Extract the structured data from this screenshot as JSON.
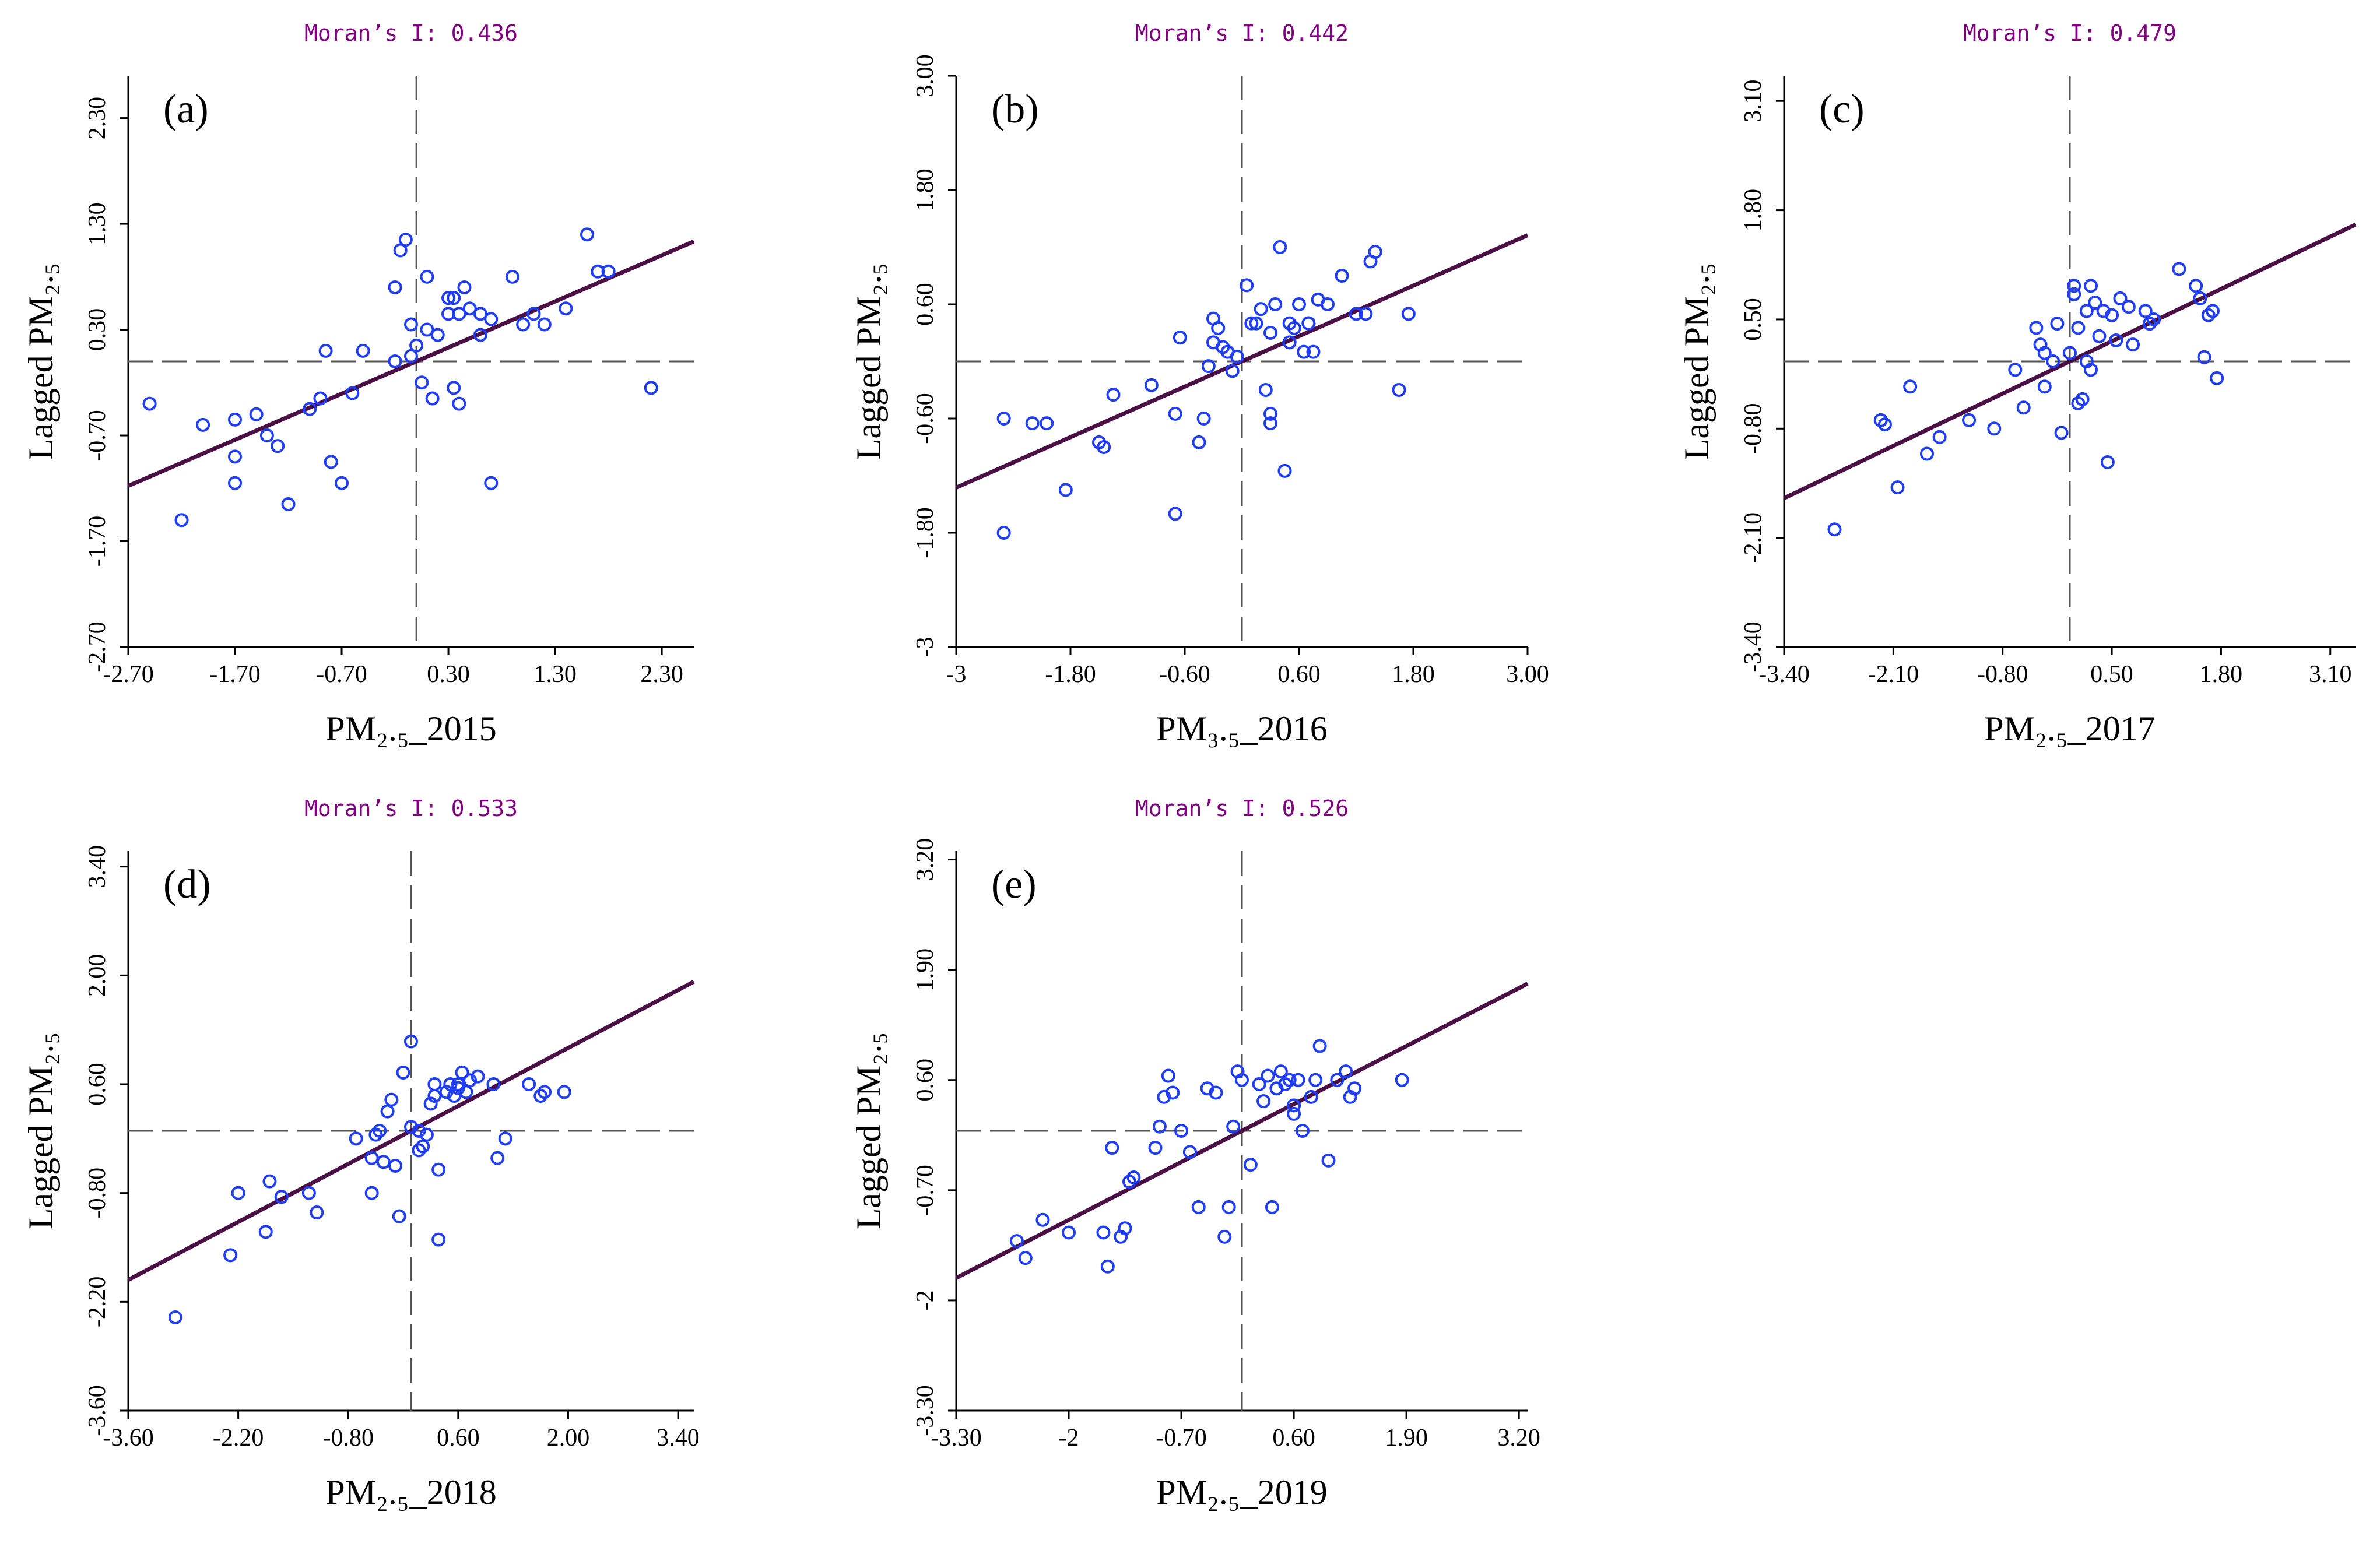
{
  "chart_data": [
    {
      "type": "scatter",
      "panel": "(a)",
      "title": "Moran’s I: 0.436",
      "xlabel": "PM₂.₅_2015",
      "ylabel": "Lagged PM₂.₅",
      "xlim": [
        -2.7,
        2.6
      ],
      "ylim": [
        -2.7,
        2.7
      ],
      "xticks": [
        "-2.70",
        "-1.70",
        "-0.70",
        "0.30",
        "1.30",
        "2.30"
      ],
      "yticks": [
        "-2.70",
        "-1.70",
        "-0.70",
        "0.30",
        "1.30",
        "2.30"
      ],
      "mean_x": 0.0,
      "mean_y": 0.0,
      "slope": 0.436,
      "x": [
        -2.5,
        -2.2,
        -2.0,
        -1.7,
        -1.7,
        -1.7,
        -1.5,
        -1.4,
        -1.3,
        -1.2,
        -1.0,
        -0.9,
        -0.85,
        -0.8,
        -0.7,
        -0.6,
        -0.5,
        -0.2,
        -0.15,
        -0.1,
        -0.05,
        -0.2,
        -0.05,
        0.0,
        0.05,
        0.1,
        0.1,
        0.15,
        0.2,
        0.3,
        0.3,
        0.35,
        0.4,
        0.45,
        0.5,
        0.6,
        0.7,
        0.7,
        0.9,
        1.0,
        1.1,
        1.2,
        1.4,
        1.6,
        1.7,
        1.8,
        2.2,
        0.4,
        0.35,
        0.6
      ],
      "y": [
        -0.4,
        -1.5,
        -0.6,
        -0.55,
        -0.9,
        -1.15,
        -0.5,
        -0.7,
        -0.8,
        -1.35,
        -0.45,
        -0.35,
        0.1,
        -0.95,
        -1.15,
        -0.3,
        0.1,
        0.7,
        1.05,
        1.15,
        0.05,
        0.0,
        0.35,
        0.15,
        -0.2,
        0.3,
        0.8,
        -0.35,
        0.25,
        0.6,
        0.45,
        -0.25,
        0.45,
        0.7,
        0.5,
        0.25,
        0.4,
        -1.15,
        0.8,
        0.35,
        0.45,
        0.35,
        0.5,
        1.2,
        0.85,
        0.85,
        -0.25,
        -0.4,
        0.6,
        0.45
      ]
    },
    {
      "type": "scatter",
      "panel": "(b)",
      "title": "Moran’s I: 0.442",
      "xlabel": "PM₃.₅_2016",
      "ylabel": "Lagged PM₂.₅",
      "xlim": [
        -3,
        3
      ],
      "ylim": [
        -3,
        3
      ],
      "xticks": [
        "-3",
        "-1.80",
        "-0.60",
        "0.60",
        "1.80",
        "3.00"
      ],
      "yticks": [
        "-3",
        "-1.80",
        "-0.60",
        "0.60",
        "1.80",
        "3.00"
      ],
      "mean_x": 0.0,
      "mean_y": 0.0,
      "slope": 0.442,
      "x": [
        -2.5,
        -2.5,
        -2.2,
        -2.05,
        -1.85,
        -1.5,
        -1.45,
        -1.35,
        -0.95,
        -0.7,
        -0.7,
        -0.65,
        -0.45,
        -0.4,
        -0.35,
        -0.3,
        -0.25,
        -0.2,
        -0.15,
        -0.1,
        -0.05,
        0.05,
        0.1,
        0.15,
        0.2,
        0.25,
        0.3,
        0.3,
        0.35,
        0.4,
        0.45,
        0.5,
        0.5,
        0.55,
        0.6,
        0.65,
        0.7,
        0.75,
        0.8,
        0.9,
        1.05,
        1.2,
        1.3,
        1.35,
        1.4,
        1.65,
        1.75,
        0.3,
        -0.3,
        0.7
      ],
      "y": [
        -0.6,
        -1.8,
        -0.65,
        -0.65,
        -1.35,
        -0.85,
        -0.9,
        -0.35,
        -0.25,
        -1.6,
        -0.55,
        0.25,
        -0.85,
        -0.6,
        -0.05,
        0.45,
        0.35,
        0.15,
        0.1,
        -0.1,
        0.05,
        0.8,
        0.4,
        0.4,
        0.55,
        -0.3,
        -0.65,
        -0.55,
        0.6,
        1.2,
        -1.15,
        0.4,
        0.2,
        0.35,
        0.6,
        0.1,
        0.4,
        0.1,
        0.65,
        0.6,
        0.9,
        0.5,
        0.5,
        1.05,
        1.15,
        -0.3,
        0.5,
        0.3,
        0.2,
        0.4
      ]
    },
    {
      "type": "scatter",
      "panel": "(c)",
      "title": "Moran’s I: 0.479",
      "xlabel": "PM₂.₅_2017",
      "ylabel": "Lagged PM₂.₅",
      "xlim": [
        -3.4,
        3.4
      ],
      "ylim": [
        -3.4,
        3.4
      ],
      "xticks": [
        "-3.40",
        "-2.10",
        "-0.80",
        "0.50",
        "1.80",
        "3.10"
      ],
      "yticks": [
        "-3.40",
        "-2.10",
        "-0.80",
        "0.50",
        "1.80",
        "3.10"
      ],
      "mean_x": 0.0,
      "mean_y": 0.0,
      "slope": 0.479,
      "x": [
        -2.8,
        -2.25,
        -2.2,
        -2.05,
        -1.9,
        -1.7,
        -1.55,
        -1.2,
        -0.9,
        -0.65,
        -0.55,
        -0.4,
        -0.35,
        -0.3,
        -0.3,
        -0.2,
        -0.15,
        -0.1,
        0.0,
        0.05,
        0.05,
        0.1,
        0.1,
        0.15,
        0.2,
        0.2,
        0.25,
        0.25,
        0.3,
        0.35,
        0.4,
        0.45,
        0.5,
        0.55,
        0.6,
        0.7,
        0.75,
        0.9,
        0.95,
        1.0,
        1.3,
        1.5,
        1.6,
        1.7,
        1.55,
        1.65,
        1.75
      ],
      "y": [
        -2.0,
        -0.7,
        -0.75,
        -1.5,
        -0.3,
        -1.1,
        -0.9,
        -0.7,
        -0.8,
        -0.1,
        -0.55,
        0.4,
        0.2,
        0.1,
        -0.3,
        0.0,
        0.45,
        -0.85,
        0.1,
        0.8,
        0.9,
        -0.5,
        0.4,
        -0.45,
        0.6,
        0.0,
        0.9,
        -0.1,
        0.7,
        0.3,
        0.6,
        -1.2,
        0.55,
        0.25,
        0.75,
        0.65,
        0.2,
        0.6,
        0.45,
        0.5,
        1.1,
        0.9,
        0.05,
        0.6,
        0.75,
        0.55,
        -0.2
      ]
    },
    {
      "type": "scatter",
      "panel": "(d)",
      "title": "Moran’s I: 0.533",
      "xlabel": "PM₂.₅_2018",
      "ylabel": "Lagged PM₂.₅",
      "xlim": [
        -3.6,
        3.6
      ],
      "ylim": [
        -3.6,
        3.6
      ],
      "xticks": [
        "-3.60",
        "-2.20",
        "-0.80",
        "0.60",
        "2.00",
        "3.40"
      ],
      "yticks": [
        "-3.60",
        "-2.20",
        "-0.80",
        "0.60",
        "2.00",
        "3.40"
      ],
      "mean_x": 0.0,
      "mean_y": 0.0,
      "slope": 0.533,
      "x": [
        -3.0,
        -2.3,
        -2.2,
        -1.85,
        -1.8,
        -1.65,
        -1.3,
        -1.2,
        -0.7,
        -0.5,
        -0.5,
        -0.45,
        -0.4,
        -0.35,
        -0.3,
        -0.25,
        -0.2,
        -0.15,
        -0.1,
        0.0,
        0.0,
        0.1,
        0.15,
        0.2,
        0.25,
        0.3,
        0.3,
        0.35,
        0.45,
        0.5,
        0.55,
        0.6,
        0.6,
        0.65,
        0.7,
        0.75,
        0.85,
        1.05,
        1.1,
        1.2,
        1.5,
        1.65,
        1.7,
        1.95,
        0.35,
        0.1
      ],
      "y": [
        -2.4,
        -1.6,
        -0.8,
        -1.3,
        -0.65,
        -0.85,
        -0.8,
        -1.05,
        -0.1,
        -0.35,
        -0.8,
        -0.05,
        0.0,
        -0.4,
        0.25,
        0.4,
        -0.45,
        -1.1,
        0.75,
        0.05,
        1.15,
        -0.25,
        -0.2,
        -0.05,
        0.35,
        0.6,
        0.45,
        -0.5,
        0.5,
        0.6,
        0.45,
        0.55,
        0.6,
        0.75,
        0.5,
        0.65,
        0.7,
        0.6,
        -0.35,
        -0.1,
        0.6,
        0.45,
        0.5,
        0.5,
        -1.4,
        0.0
      ]
    },
    {
      "type": "scatter",
      "panel": "(e)",
      "title": "Moran’s I: 0.526",
      "xlabel": "PM₂.₅_2019",
      "ylabel": "Lagged PM₂.₅",
      "xlim": [
        -3.3,
        3.3
      ],
      "ylim": [
        -3.3,
        3.3
      ],
      "xticks": [
        "-3.30",
        "-2",
        "-0.70",
        "0.60",
        "1.90",
        "3.20"
      ],
      "yticks": [
        "-3.30",
        "-2",
        "-0.70",
        "0.60",
        "1.90",
        "3.20"
      ],
      "mean_x": 0.0,
      "mean_y": 0.0,
      "slope": 0.526,
      "x": [
        -2.6,
        -2.5,
        -2.3,
        -2.0,
        -1.6,
        -1.55,
        -1.5,
        -1.4,
        -1.35,
        -1.3,
        -1.25,
        -1.0,
        -0.95,
        -0.9,
        -0.85,
        -0.8,
        -0.7,
        -0.6,
        -0.5,
        -0.4,
        -0.3,
        -0.2,
        -0.15,
        -0.1,
        -0.05,
        0.0,
        0.1,
        0.2,
        0.25,
        0.3,
        0.35,
        0.4,
        0.45,
        0.5,
        0.55,
        0.6,
        0.6,
        0.65,
        0.7,
        0.8,
        0.85,
        0.9,
        1.0,
        1.1,
        1.2,
        1.25,
        1.3,
        1.85
      ],
      "y": [
        -1.3,
        -1.5,
        -1.05,
        -1.2,
        -1.2,
        -1.6,
        -0.2,
        -1.25,
        -1.15,
        -0.6,
        -0.55,
        -0.2,
        0.05,
        0.4,
        0.65,
        0.45,
        0.0,
        -0.25,
        -0.9,
        0.5,
        0.45,
        -1.25,
        -0.9,
        0.05,
        0.7,
        0.6,
        -0.4,
        0.55,
        0.35,
        0.65,
        -0.9,
        0.5,
        0.7,
        0.55,
        0.6,
        0.3,
        0.2,
        0.6,
        0.0,
        0.4,
        0.6,
        1.0,
        -0.35,
        0.6,
        0.7,
        0.4,
        0.5,
        0.6
      ]
    }
  ]
}
